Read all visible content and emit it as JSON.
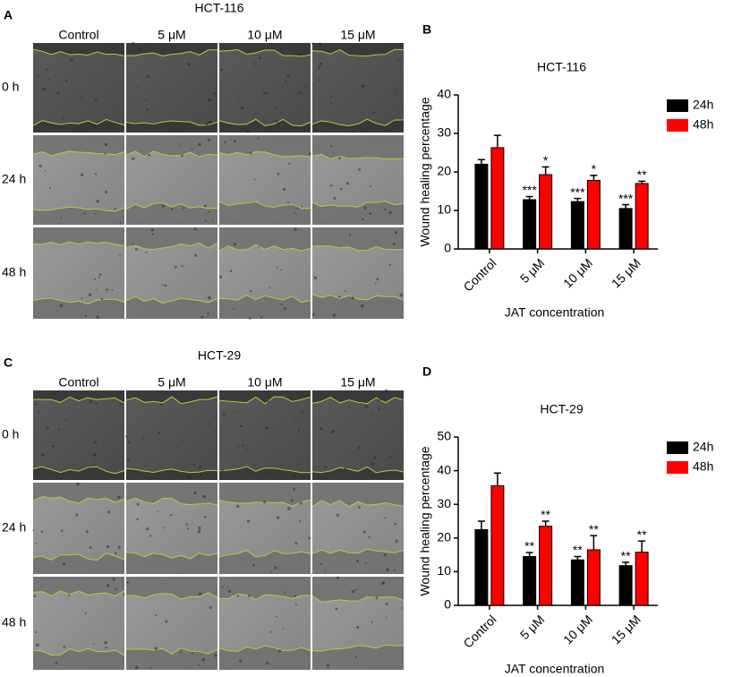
{
  "image_panels": [
    {
      "panel_label": "A",
      "title": "HCT-116",
      "columns": [
        "Control",
        "5 μM",
        "10 μM",
        "15 μM"
      ],
      "rows": [
        "0 h",
        "24 h",
        "48 h"
      ]
    },
    {
      "panel_label": "C",
      "title": "HCT-29",
      "columns": [
        "Control",
        "5 μM",
        "10 μM",
        "15 μM"
      ],
      "rows": [
        "0 h",
        "24 h",
        "48 h"
      ]
    }
  ],
  "chart_data": [
    {
      "type": "bar",
      "panel_label": "B",
      "title": "HCT-116",
      "x_label": "JAT concentration",
      "y_label": "Wound healing percentage",
      "categories": [
        "Control",
        "5 μM",
        "10 μM",
        "15 μM"
      ],
      "series": [
        {
          "name": "24h",
          "color": "#000000",
          "values": [
            22,
            12.8,
            12.3,
            10.5
          ],
          "errors": [
            1.2,
            0.8,
            0.8,
            1.0
          ],
          "annotations": [
            null,
            "***",
            "***",
            "***"
          ]
        },
        {
          "name": "48h",
          "color": "#ff0000",
          "values": [
            26.3,
            19.3,
            17.8,
            17
          ],
          "errors": [
            3.2,
            2.0,
            1.3,
            0.6
          ],
          "annotations": [
            null,
            "*",
            "*",
            "**"
          ]
        }
      ],
      "ylim": [
        0,
        40
      ],
      "yticks": [
        0,
        10,
        20,
        30,
        40
      ],
      "legend": "right"
    },
    {
      "type": "bar",
      "panel_label": "D",
      "title": "HCT-29",
      "x_label": "JAT concentration",
      "y_label": "Wound healing percentage",
      "categories": [
        "Control",
        "5 μM",
        "10 μM",
        "15 μM"
      ],
      "series": [
        {
          "name": "24h",
          "color": "#000000",
          "values": [
            22.5,
            14.5,
            13.5,
            11.8
          ],
          "errors": [
            2.5,
            1.2,
            1.0,
            1.0
          ],
          "annotations": [
            null,
            "**",
            "**",
            "**"
          ]
        },
        {
          "name": "48h",
          "color": "#ff0000",
          "values": [
            35.5,
            23.5,
            16.5,
            15.8
          ],
          "errors": [
            3.8,
            1.5,
            4.2,
            3.3
          ],
          "annotations": [
            null,
            "**",
            "**",
            "**"
          ]
        }
      ],
      "ylim": [
        0,
        50
      ],
      "yticks": [
        0,
        10,
        20,
        30,
        40,
        50
      ],
      "legend": "right"
    }
  ]
}
